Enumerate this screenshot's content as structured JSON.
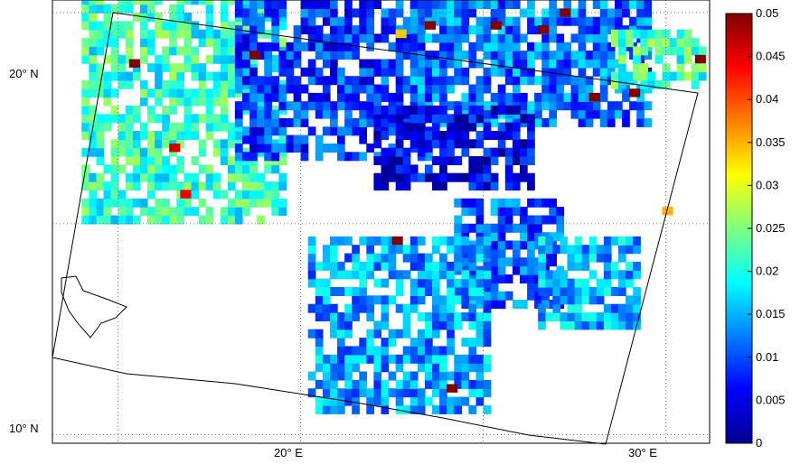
{
  "chart_data": {
    "type": "heatmap",
    "title": "",
    "subtitle": "",
    "xlabel": "",
    "ylabel": "",
    "x_ticks": [
      "20° E",
      "30° E"
    ],
    "y_ticks": [
      "20° N",
      "10° N"
    ],
    "x_range_deg_E": [
      13.2,
      31.2
    ],
    "y_range_deg_N": [
      9.8,
      20.3
    ],
    "colorbar": {
      "range": [
        0,
        0.05
      ],
      "ticks": [
        "0",
        "0.005",
        "0.01",
        "0.015",
        "0.02",
        "0.025",
        "0.03",
        "0.035",
        "0.04",
        "0.045",
        "0.05"
      ],
      "colormap": "jet"
    },
    "grid": true,
    "regions": [
      {
        "lon": [
          14.0,
          19.5
        ],
        "lat": [
          15.0,
          20.2
        ],
        "level": 0.021
      },
      {
        "lon": [
          18.2,
          23.4
        ],
        "lat": [
          16.5,
          20.6
        ],
        "level": 0.009
      },
      {
        "lon": [
          23.0,
          29.5
        ],
        "lat": [
          17.3,
          20.2
        ],
        "level": 0.012
      },
      {
        "lon": [
          22.0,
          26.2
        ],
        "lat": [
          15.8,
          17.6
        ],
        "level": 0.005
      },
      {
        "lon": [
          24.2,
          27.0
        ],
        "lat": [
          13.0,
          15.4
        ],
        "level": 0.011
      },
      {
        "lon": [
          20.2,
          25.0
        ],
        "lat": [
          10.5,
          14.5
        ],
        "level": 0.014
      },
      {
        "lon": [
          26.5,
          29.2
        ],
        "lat": [
          12.5,
          14.6
        ],
        "level": 0.015
      },
      {
        "lon": [
          28.5,
          31.0
        ],
        "lat": [
          18.2,
          19.5
        ],
        "level": 0.022
      }
    ],
    "hotspots": [
      {
        "lon": 16.4,
        "lat": 16.7,
        "value": 0.046
      },
      {
        "lon": 15.3,
        "lat": 18.7,
        "value": 0.05
      },
      {
        "lon": 18.6,
        "lat": 18.9,
        "value": 0.05
      },
      {
        "lon": 25.2,
        "lat": 19.6,
        "value": 0.05
      },
      {
        "lon": 26.5,
        "lat": 19.5,
        "value": 0.05
      },
      {
        "lon": 27.1,
        "lat": 19.9,
        "value": 0.05
      },
      {
        "lon": 23.4,
        "lat": 19.6,
        "value": 0.05
      },
      {
        "lon": 29.0,
        "lat": 18.0,
        "value": 0.05
      },
      {
        "lon": 30.8,
        "lat": 18.8,
        "value": 0.05
      },
      {
        "lon": 27.9,
        "lat": 17.9,
        "value": 0.05
      },
      {
        "lon": 22.5,
        "lat": 14.5,
        "value": 0.05
      },
      {
        "lon": 24.0,
        "lat": 11.0,
        "value": 0.05
      },
      {
        "lon": 29.9,
        "lat": 15.2,
        "value": 0.035
      },
      {
        "lon": 22.6,
        "lat": 19.4,
        "value": 0.034
      },
      {
        "lon": 16.7,
        "lat": 15.6,
        "value": 0.045
      }
    ]
  }
}
